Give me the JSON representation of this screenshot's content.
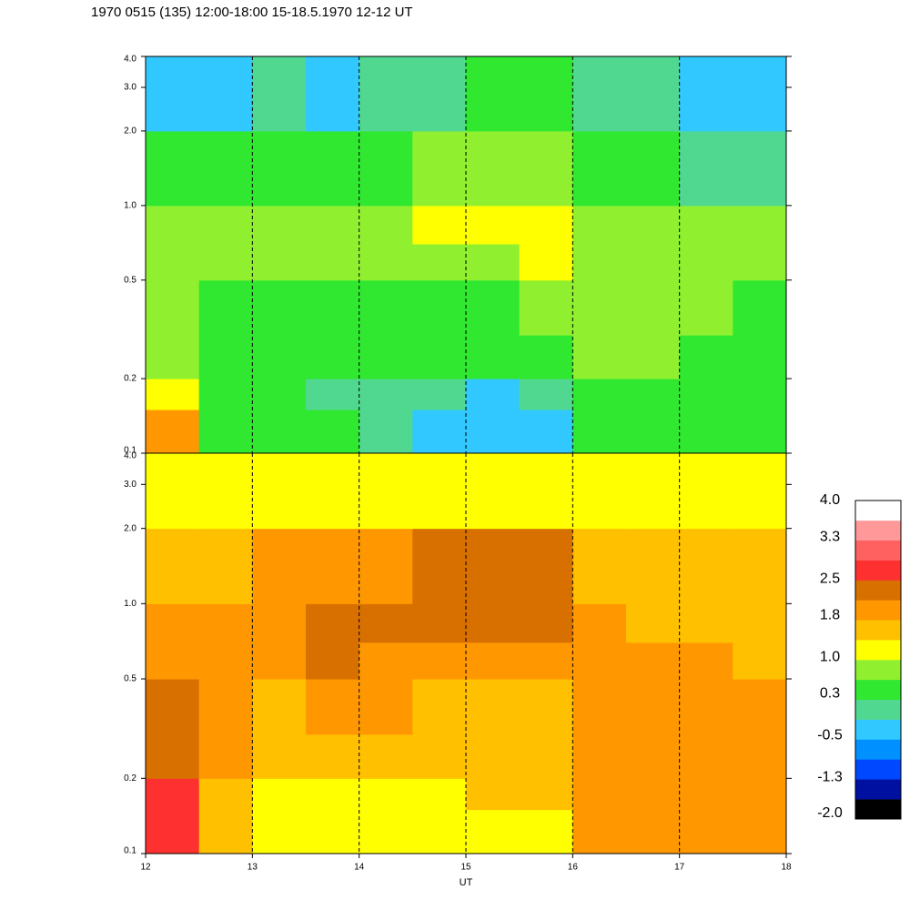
{
  "chart_data": {
    "type": "heatmap",
    "title": "1970 0515 (135) 12:00-18:00 15-18.5.1970  12-12 UT",
    "x_label": "UT",
    "xlim": [
      12,
      18
    ],
    "xticks": [
      12,
      13,
      14,
      15,
      16,
      17,
      18
    ],
    "x_bins": [
      12,
      12.5,
      13,
      13.5,
      14,
      14.5,
      15,
      15.5,
      16,
      16.5,
      17,
      17.5,
      18
    ],
    "grid": true,
    "log_y": true,
    "ylim": [
      0.1,
      4.0
    ],
    "yticks": [
      0.1,
      0.2,
      0.5,
      {
        "value": 1,
        "label": "1.0"
      },
      {
        "value": 2,
        "label": "2.0"
      },
      {
        "value": 3,
        "label": "3.0"
      },
      {
        "value": 4,
        "label": "4.0"
      }
    ],
    "y_bins": [
      0.1,
      0.15,
      0.2,
      0.3,
      0.5,
      0.7,
      1.0,
      2.0,
      4.0
    ],
    "panels": [
      {
        "z": [
          [
            1.9,
            0.4,
            0.3,
            0.3,
            0.0,
            -0.3,
            -0.3,
            -0.4,
            0.4,
            0.4,
            0.4,
            0.4
          ],
          [
            1.2,
            0.4,
            0.3,
            0.1,
            0.0,
            -0.1,
            -0.2,
            -0.1,
            0.5,
            0.5,
            0.4,
            0.4
          ],
          [
            0.8,
            0.4,
            0.4,
            0.4,
            0.3,
            0.3,
            0.3,
            0.3,
            0.7,
            0.7,
            0.5,
            0.5
          ],
          [
            0.9,
            0.5,
            0.5,
            0.5,
            0.4,
            0.4,
            0.5,
            0.6,
            0.6,
            0.7,
            0.6,
            0.5
          ],
          [
            0.7,
            0.6,
            0.6,
            0.7,
            0.6,
            0.7,
            0.9,
            1.0,
            0.6,
            0.7,
            0.7,
            0.6
          ],
          [
            0.6,
            0.6,
            0.6,
            0.6,
            0.7,
            1.0,
            1.0,
            1.1,
            0.6,
            0.6,
            0.6,
            0.6
          ],
          [
            0.4,
            0.3,
            0.4,
            0.2,
            0.3,
            0.6,
            0.7,
            0.8,
            0.4,
            0.3,
            0.1,
            0.1
          ],
          [
            -0.2,
            -0.3,
            -0.1,
            -0.4,
            -0.1,
            0.0,
            0.2,
            0.2,
            -0.1,
            -0.1,
            -0.5,
            -0.5
          ]
        ]
      },
      {
        "z": [
          [
            2.7,
            1.6,
            1.0,
            1.1,
            1.0,
            1.1,
            1.2,
            1.2,
            1.8,
            1.8,
            1.8,
            1.8
          ],
          [
            2.6,
            1.7,
            1.2,
            1.3,
            1.2,
            1.3,
            1.4,
            1.5,
            1.9,
            2.0,
            1.9,
            1.9
          ],
          [
            2.1,
            1.8,
            1.6,
            1.7,
            1.5,
            1.6,
            1.6,
            1.6,
            2.0,
            2.0,
            1.9,
            2.0
          ],
          [
            2.1,
            1.9,
            1.7,
            1.9,
            1.8,
            1.6,
            1.6,
            1.7,
            1.9,
            1.8,
            1.8,
            1.9
          ],
          [
            1.9,
            1.8,
            1.9,
            2.1,
            1.9,
            1.8,
            1.8,
            1.9,
            1.8,
            1.8,
            1.8,
            1.7
          ],
          [
            1.8,
            1.8,
            2.0,
            2.3,
            2.2,
            2.1,
            2.2,
            2.2,
            1.8,
            1.7,
            1.7,
            1.7
          ],
          [
            1.7,
            1.7,
            1.8,
            1.9,
            2.0,
            2.1,
            2.1,
            2.1,
            1.7,
            1.7,
            1.7,
            1.6
          ],
          [
            1.2,
            1.2,
            1.1,
            1.2,
            1.2,
            1.3,
            1.3,
            1.3,
            1.2,
            1.2,
            1.2,
            1.1
          ]
        ]
      }
    ],
    "colorbar": {
      "clim": [
        -2.1,
        4.0
      ],
      "colors": [
        "#000000",
        "#0010a0",
        "#0048ff",
        "#0090ff",
        "#30c8ff",
        "#50d890",
        "#30e830",
        "#90f030",
        "#ffff00",
        "#ffc000",
        "#ff9800",
        "#d87000",
        "#ff3030",
        "#ff6060",
        "#ff9898",
        "#ffffff"
      ],
      "ticks": [
        {
          "value": 4,
          "label": "4.0"
        },
        3.3,
        2.5,
        1.8,
        {
          "value": 1,
          "label": "1.0"
        },
        0.3,
        -0.5,
        -1.3,
        {
          "value": -2,
          "label": "-2.0"
        }
      ]
    }
  }
}
